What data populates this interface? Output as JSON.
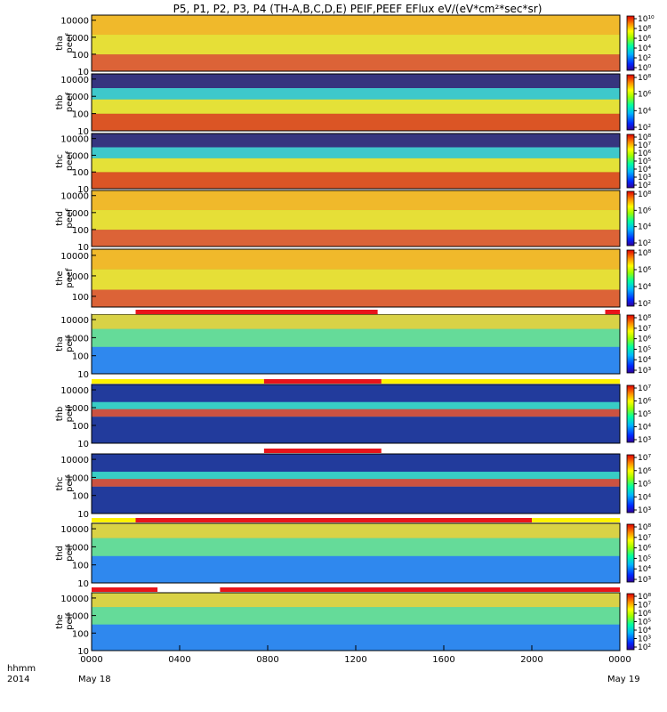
{
  "title": "P5, P1, P2, P3, P4 (TH-A,B,C,D,E) PEIF,PEEF EFlux eV/(eV*cm²*sec*sr)",
  "footer": {
    "hhmm": "hhmm",
    "year": "2014",
    "start_date": "May 18",
    "end_date": "May 19"
  },
  "colors": {
    "bar_red": "#e8141b",
    "bar_yellow": "#fff200",
    "bar_white": "#ffffff"
  },
  "chart_data": {
    "type": "heatmap",
    "x_unit": "hhmm",
    "x_range": [
      "0000",
      "0000"
    ],
    "x_ticks": [
      "0000",
      "0400",
      "0800",
      "1200",
      "1600",
      "2000",
      "0000"
    ],
    "panels": [
      {
        "label": [
          "tha",
          "peef"
        ],
        "yticks": [
          "10000",
          "1000",
          "100",
          "10"
        ],
        "ylim": [
          10,
          20000
        ],
        "cbar": [
          "10¹⁰",
          "10⁸",
          "10⁶",
          "10⁴",
          "10²",
          "10⁰"
        ],
        "bar_before": null
      },
      {
        "label": [
          "thb",
          "peef"
        ],
        "yticks": [
          "10000",
          "1000",
          "100",
          "10"
        ],
        "ylim": [
          10,
          20000
        ],
        "cbar": [
          "10⁸",
          "10⁶",
          "10⁴",
          "10²"
        ],
        "bar_before": null
      },
      {
        "label": [
          "thc",
          "peef"
        ],
        "yticks": [
          "10000",
          "1000",
          "100",
          "10"
        ],
        "ylim": [
          10,
          20000
        ],
        "cbar": [
          "10⁸",
          "10⁷",
          "10⁶",
          "10⁵",
          "10⁴",
          "10³",
          "10²"
        ],
        "bar_before": null
      },
      {
        "label": [
          "thd",
          "peef"
        ],
        "yticks": [
          "10000",
          "1000",
          "100",
          "10"
        ],
        "ylim": [
          10,
          20000
        ],
        "cbar": [
          "10⁸",
          "10⁶",
          "10⁴",
          "10²"
        ],
        "bar_before": null
      },
      {
        "label": [
          "the",
          "peef"
        ],
        "yticks": [
          "10000",
          "1000",
          "100"
        ],
        "ylim": [
          30,
          20000
        ],
        "cbar": [
          "10⁸",
          "10⁶",
          "10⁴",
          "10²"
        ],
        "bar_before": null
      },
      {
        "label": [
          "tha",
          "peif"
        ],
        "yticks": [
          "10000",
          "1000",
          "100",
          "10"
        ],
        "ylim": [
          10,
          20000
        ],
        "cbar": [
          "10⁸",
          "10⁷",
          "10⁶",
          "10⁵",
          "10⁴",
          "10³"
        ],
        "bar_before": [
          {
            "from": "0000",
            "to": "0200",
            "state": "white"
          },
          {
            "from": "0200",
            "to": "1300",
            "state": "red"
          },
          {
            "from": "1300",
            "to": "2320",
            "state": "white"
          },
          {
            "from": "2320",
            "to": "2400",
            "state": "red"
          }
        ]
      },
      {
        "label": [
          "thb",
          "peif"
        ],
        "yticks": [
          "10000",
          "1000",
          "100",
          "10"
        ],
        "ylim": [
          10,
          20000
        ],
        "cbar": [
          "10⁷",
          "10⁶",
          "10⁵",
          "10⁴",
          "10³"
        ],
        "bar_before": [
          {
            "from": "0000",
            "to": "0750",
            "state": "yellow"
          },
          {
            "from": "0750",
            "to": "1310",
            "state": "red"
          },
          {
            "from": "1310",
            "to": "2400",
            "state": "yellow"
          }
        ]
      },
      {
        "label": [
          "thc",
          "peif"
        ],
        "yticks": [
          "10000",
          "1000",
          "100",
          "10"
        ],
        "ylim": [
          10,
          20000
        ],
        "cbar": [
          "10⁷",
          "10⁶",
          "10⁵",
          "10⁴",
          "10³"
        ],
        "bar_before": [
          {
            "from": "0000",
            "to": "0750",
            "state": "white"
          },
          {
            "from": "0750",
            "to": "1310",
            "state": "red"
          },
          {
            "from": "1310",
            "to": "2400",
            "state": "white"
          }
        ]
      },
      {
        "label": [
          "thd",
          "peif"
        ],
        "yticks": [
          "10000",
          "1000",
          "100",
          "10"
        ],
        "ylim": [
          10,
          20000
        ],
        "cbar": [
          "10⁸",
          "10⁷",
          "10⁶",
          "10⁵",
          "10⁴",
          "10³"
        ],
        "bar_before": [
          {
            "from": "0000",
            "to": "0200",
            "state": "yellow"
          },
          {
            "from": "0200",
            "to": "2000",
            "state": "red"
          },
          {
            "from": "2000",
            "to": "2400",
            "state": "yellow"
          }
        ]
      },
      {
        "label": [
          "the",
          "peif"
        ],
        "yticks": [
          "10000",
          "1000",
          "100",
          "10"
        ],
        "ylim": [
          10,
          20000
        ],
        "cbar": [
          "10⁸",
          "10⁷",
          "10⁶",
          "10⁵",
          "10⁴",
          "10³",
          "10²"
        ],
        "bar_before": [
          {
            "from": "0000",
            "to": "0300",
            "state": "red"
          },
          {
            "from": "0300",
            "to": "0550",
            "state": "white"
          },
          {
            "from": "0550",
            "to": "2400",
            "state": "red"
          }
        ]
      }
    ]
  }
}
